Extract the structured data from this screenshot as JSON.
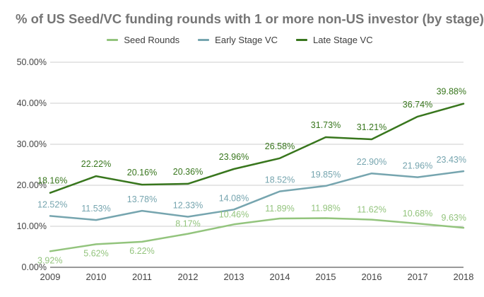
{
  "chart_data": {
    "type": "line",
    "title": "% of US Seed/VC funding rounds with 1 or more non-US investor (by stage)",
    "xlabel": "",
    "ylabel": "",
    "x": [
      "2009",
      "2010",
      "2011",
      "2012",
      "2013",
      "2014",
      "2015",
      "2016",
      "2017",
      "2018"
    ],
    "ylim": [
      0,
      50
    ],
    "yticks": [
      "0.00%",
      "10.00%",
      "20.00%",
      "30.00%",
      "40.00%",
      "50.00%"
    ],
    "grid": true,
    "legend_position": "top",
    "series": [
      {
        "name": "Seed Rounds",
        "color": "#93c47d",
        "values": [
          3.92,
          5.62,
          6.22,
          8.17,
          10.46,
          11.89,
          11.98,
          11.62,
          10.68,
          9.63
        ],
        "labels": [
          "3.92%",
          "5.62%",
          "6.22%",
          "8.17%",
          "10.46%",
          "11.89%",
          "11.98%",
          "11.62%",
          "10.68%",
          "9.63%"
        ]
      },
      {
        "name": "Early Stage VC",
        "color": "#76a5af",
        "values": [
          12.52,
          11.53,
          13.78,
          12.33,
          14.08,
          18.52,
          19.85,
          22.9,
          21.96,
          23.43
        ],
        "labels": [
          "12.52%",
          "11.53%",
          "13.78%",
          "12.33%",
          "14.08%",
          "18.52%",
          "19.85%",
          "22.90%",
          "21.96%",
          "23.43%"
        ]
      },
      {
        "name": "Late Stage VC",
        "color": "#38761d",
        "values": [
          18.16,
          22.22,
          20.16,
          20.36,
          23.96,
          26.58,
          31.73,
          31.21,
          36.74,
          39.88
        ],
        "labels": [
          "18.16%",
          "22.22%",
          "20.16%",
          "20.36%",
          "23.96%",
          "26.58%",
          "31.73%",
          "31.21%",
          "36.74%",
          "39.88%"
        ]
      }
    ]
  }
}
